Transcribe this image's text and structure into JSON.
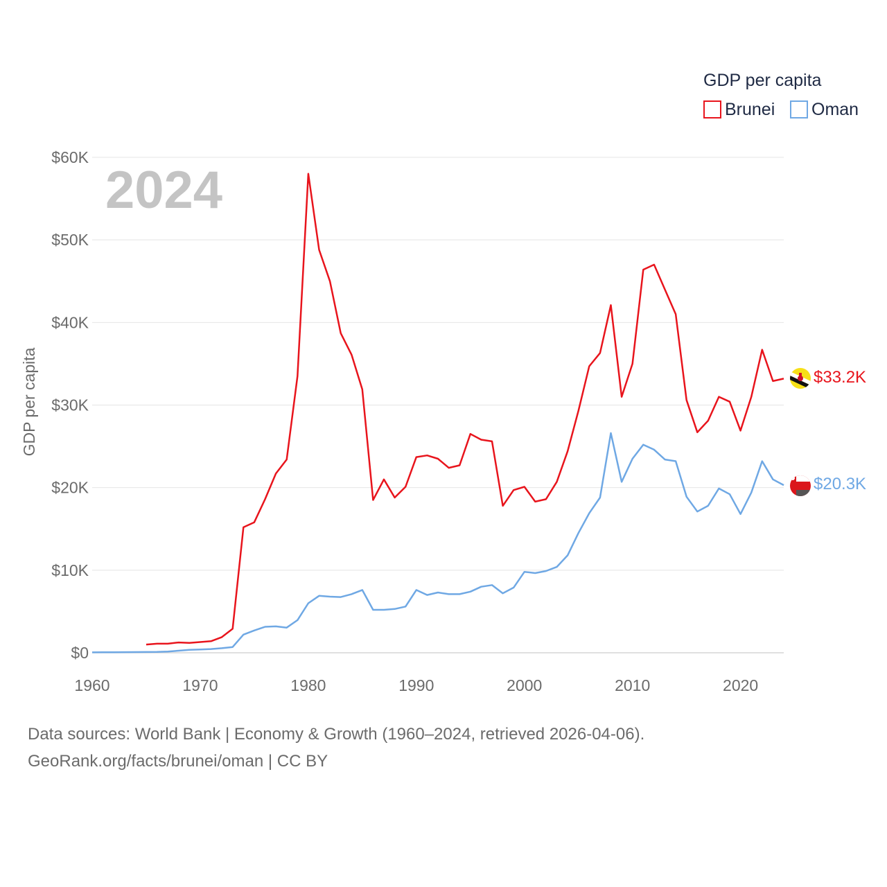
{
  "chart_data": {
    "type": "line",
    "title": "GDP per capita",
    "year_label": "2024",
    "ylabel": "GDP per capita",
    "xlabel": "",
    "xlim": [
      1960,
      2024
    ],
    "ylim": [
      0,
      60000
    ],
    "x_ticks": [
      1960,
      1970,
      1980,
      1990,
      2000,
      2010,
      2020
    ],
    "y_ticks": [
      {
        "value": 0,
        "label": "$0"
      },
      {
        "value": 10000,
        "label": "$10K"
      },
      {
        "value": 20000,
        "label": "$20K"
      },
      {
        "value": 30000,
        "label": "$30K"
      },
      {
        "value": 40000,
        "label": "$40K"
      },
      {
        "value": 50000,
        "label": "$50K"
      },
      {
        "value": 60000,
        "label": "$60K"
      }
    ],
    "grid": true,
    "legend_position": "top-right",
    "series": [
      {
        "name": "Brunei",
        "color": "#e8141c",
        "end_label": "$33.2K",
        "flag_icon": "brunei-flag-icon",
        "x": [
          1965,
          1966,
          1967,
          1968,
          1969,
          1970,
          1971,
          1972,
          1973,
          1974,
          1975,
          1976,
          1977,
          1978,
          1979,
          1980,
          1981,
          1982,
          1983,
          1984,
          1985,
          1986,
          1987,
          1988,
          1989,
          1990,
          1991,
          1992,
          1993,
          1994,
          1995,
          1996,
          1997,
          1998,
          1999,
          2000,
          2001,
          2002,
          2003,
          2004,
          2005,
          2006,
          2007,
          2008,
          2009,
          2010,
          2011,
          2012,
          2013,
          2014,
          2015,
          2016,
          2017,
          2018,
          2019,
          2020,
          2021,
          2022,
          2023,
          2024
        ],
        "values": [
          1000,
          1100,
          1100,
          1250,
          1200,
          1300,
          1400,
          1900,
          2900,
          15200,
          15800,
          18600,
          21700,
          23400,
          33500,
          58000,
          48800,
          45000,
          38700,
          36100,
          31900,
          18500,
          21000,
          18800,
          20100,
          23700,
          23900,
          23500,
          22400,
          22700,
          26500,
          25800,
          25600,
          17800,
          19700,
          20100,
          18300,
          18600,
          20700,
          24400,
          29300,
          34700,
          36300,
          42100,
          31000,
          35000,
          46400,
          47000,
          44000,
          41000,
          30600,
          26700,
          28100,
          31000,
          30400,
          26900,
          31000,
          36700,
          32900,
          33200
        ]
      },
      {
        "name": "Oman",
        "color": "#6fa8e4",
        "end_label": "$20.3K",
        "flag_icon": "oman-flag-icon",
        "x": [
          1960,
          1961,
          1962,
          1963,
          1964,
          1965,
          1966,
          1967,
          1968,
          1969,
          1970,
          1971,
          1972,
          1973,
          1974,
          1975,
          1976,
          1977,
          1978,
          1979,
          1980,
          1981,
          1982,
          1983,
          1984,
          1985,
          1986,
          1987,
          1988,
          1989,
          1990,
          1991,
          1992,
          1993,
          1994,
          1995,
          1996,
          1997,
          1998,
          1999,
          2000,
          2001,
          2002,
          2003,
          2004,
          2005,
          2006,
          2007,
          2008,
          2009,
          2010,
          2011,
          2012,
          2013,
          2014,
          2015,
          2016,
          2017,
          2018,
          2019,
          2020,
          2021,
          2022,
          2023,
          2024
        ],
        "values": [
          50,
          60,
          70,
          75,
          80,
          90,
          100,
          150,
          250,
          350,
          400,
          450,
          550,
          700,
          2200,
          2700,
          3150,
          3200,
          3050,
          3950,
          6000,
          6900,
          6800,
          6750,
          7100,
          7600,
          5200,
          5200,
          5300,
          5600,
          7600,
          7000,
          7300,
          7100,
          7100,
          7400,
          8000,
          8200,
          7200,
          7900,
          9800,
          9650,
          9900,
          10400,
          11800,
          14500,
          16900,
          18800,
          26600,
          20700,
          23500,
          25200,
          24600,
          23400,
          23200,
          18900,
          17100,
          17800,
          19900,
          19200,
          16800,
          19400,
          23200,
          21000,
          20300
        ]
      }
    ]
  },
  "legend": {
    "title": "GDP per capita",
    "items": [
      "Brunei",
      "Oman"
    ]
  },
  "footer": {
    "source_line": "Data sources: World Bank | Economy & Growth (1960–2024, retrieved 2026-04-06).",
    "credit_line": "GeoRank.org/facts/brunei/oman | CC BY"
  },
  "colors": {
    "brunei": "#e8141c",
    "oman": "#6fa8e4",
    "grid": "#e4e4e4",
    "axis_text": "#6b6b6b",
    "watermark": "#c4c4c4"
  }
}
